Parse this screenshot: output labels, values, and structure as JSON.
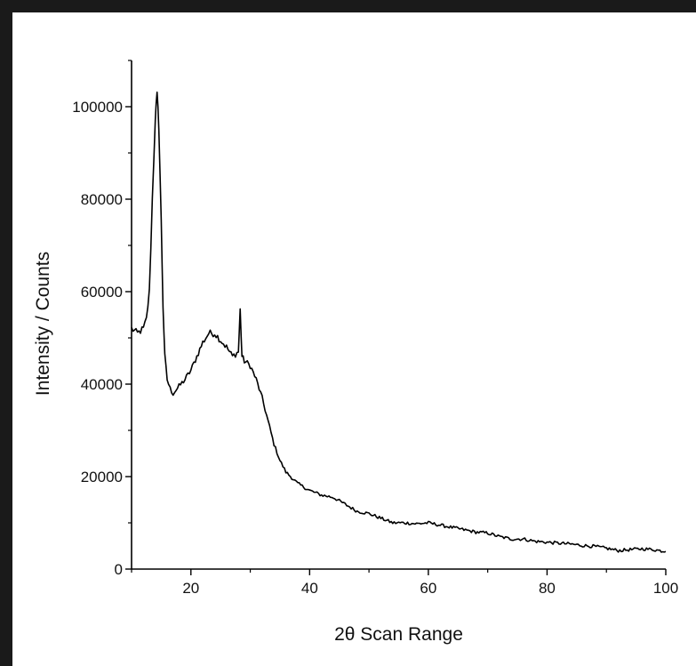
{
  "chart_data": {
    "type": "line",
    "title": "",
    "xlabel": "2θ Scan Range",
    "ylabel": "Intensity / Counts",
    "xlim": [
      10,
      100
    ],
    "ylim": [
      0,
      110000
    ],
    "x_ticks": [
      20,
      40,
      60,
      80,
      100
    ],
    "y_ticks": [
      0,
      20000,
      40000,
      60000,
      80000,
      100000
    ],
    "x_tick_labels": [
      "20",
      "40",
      "60",
      "80",
      "100"
    ],
    "y_tick_labels": [
      "0",
      "20000",
      "40000",
      "60000",
      "80000",
      "100000"
    ],
    "grid": false,
    "legend": "none",
    "series": [
      {
        "color": "#000000",
        "x": [
          10,
          11,
          12,
          12.5,
          13,
          13.5,
          14,
          14.3,
          14.6,
          15,
          15.3,
          15.6,
          16,
          16.5,
          17,
          18,
          19,
          20,
          21,
          22,
          23,
          24,
          25,
          26,
          27,
          28,
          28.3,
          28.6,
          29,
          30,
          31,
          32,
          33,
          34,
          35,
          36,
          38,
          40,
          42,
          44,
          46,
          48,
          50,
          52,
          54,
          56,
          58,
          60,
          62,
          64,
          66,
          68,
          70,
          72,
          74,
          76,
          78,
          80,
          82,
          84,
          86,
          88,
          90,
          92,
          94,
          96,
          98,
          100
        ],
        "y": [
          52000,
          51000,
          52000,
          54000,
          60000,
          80000,
          98000,
          102000,
          96000,
          75000,
          57000,
          46000,
          41000,
          39000,
          38000,
          39500,
          41000,
          43000,
          46000,
          49000,
          51000,
          51000,
          49500,
          48000,
          46000,
          47000,
          56000,
          46000,
          45000,
          44000,
          41000,
          37000,
          32000,
          27000,
          23500,
          21000,
          18500,
          17000,
          16000,
          15500,
          14000,
          12500,
          12000,
          11000,
          10000,
          10000,
          9800,
          10000,
          9500,
          9000,
          8500,
          8000,
          7800,
          7000,
          6500,
          6500,
          6000,
          5800,
          5600,
          5400,
          5100,
          4900,
          4500,
          4000,
          4200,
          4400,
          4200,
          3800
        ]
      }
    ]
  }
}
